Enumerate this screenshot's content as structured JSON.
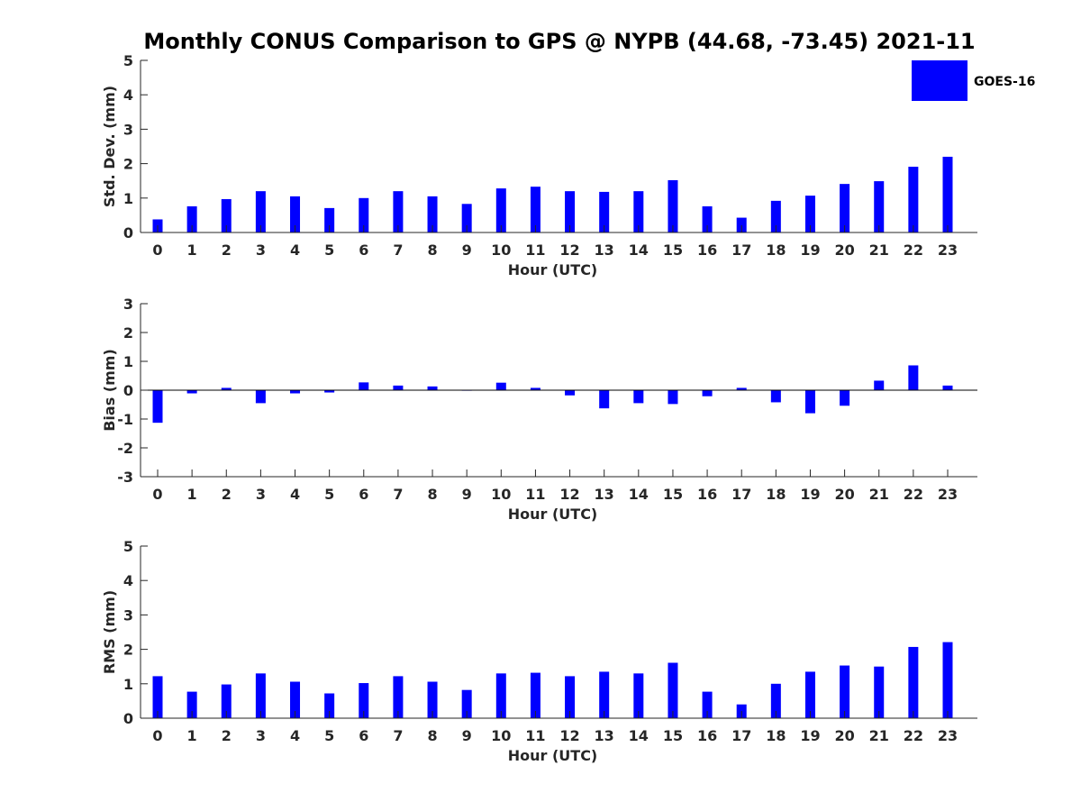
{
  "title": "Monthly CONUS Comparison to GPS @ NYPB (44.68, -73.45) 2021-11",
  "legend": {
    "label": "GOES-16",
    "color": "#0000ff",
    "placement": "top-right"
  },
  "chart_data": [
    {
      "type": "bar",
      "xlabel": "Hour (UTC)",
      "ylabel": "Std. Dev. (mm)",
      "ylim": [
        0,
        5
      ],
      "yticks": [
        0,
        1,
        2,
        3,
        4,
        5
      ],
      "categories": [
        0,
        1,
        2,
        3,
        4,
        5,
        6,
        7,
        8,
        9,
        10,
        11,
        12,
        13,
        14,
        15,
        16,
        17,
        18,
        19,
        20,
        21,
        22,
        23
      ],
      "series": [
        {
          "name": "GOES-16",
          "values": [
            0.38,
            0.76,
            0.97,
            1.2,
            1.05,
            0.71,
            1.0,
            1.2,
            1.05,
            0.83,
            1.28,
            1.33,
            1.2,
            1.18,
            1.2,
            1.52,
            0.76,
            0.43,
            0.92,
            1.07,
            1.41,
            1.49,
            1.91,
            2.2
          ]
        }
      ],
      "grid": false
    },
    {
      "type": "bar",
      "xlabel": "Hour (UTC)",
      "ylabel": "Bias (mm)",
      "ylim": [
        -3,
        3
      ],
      "yticks": [
        -3,
        -2,
        -1,
        0,
        1,
        2,
        3
      ],
      "categories": [
        0,
        1,
        2,
        3,
        4,
        5,
        6,
        7,
        8,
        9,
        10,
        11,
        12,
        13,
        14,
        15,
        16,
        17,
        18,
        19,
        20,
        21,
        22,
        23
      ],
      "series": [
        {
          "name": "GOES-16",
          "values": [
            -1.13,
            -0.11,
            0.08,
            -0.45,
            -0.11,
            -0.08,
            0.27,
            0.16,
            0.13,
            -0.01,
            0.26,
            0.08,
            -0.18,
            -0.63,
            -0.45,
            -0.48,
            -0.21,
            0.08,
            -0.42,
            -0.8,
            -0.54,
            0.33,
            0.86,
            0.16
          ]
        }
      ],
      "grid": false
    },
    {
      "type": "bar",
      "xlabel": "Hour (UTC)",
      "ylabel": "RMS (mm)",
      "ylim": [
        0,
        5
      ],
      "yticks": [
        0,
        1,
        2,
        3,
        4,
        5
      ],
      "categories": [
        0,
        1,
        2,
        3,
        4,
        5,
        6,
        7,
        8,
        9,
        10,
        11,
        12,
        13,
        14,
        15,
        16,
        17,
        18,
        19,
        20,
        21,
        22,
        23
      ],
      "series": [
        {
          "name": "GOES-16",
          "values": [
            1.22,
            0.77,
            0.98,
            1.3,
            1.06,
            0.72,
            1.02,
            1.22,
            1.06,
            0.82,
            1.3,
            1.32,
            1.22,
            1.35,
            1.3,
            1.61,
            0.77,
            0.4,
            1.0,
            1.35,
            1.53,
            1.5,
            2.07,
            2.21
          ]
        }
      ],
      "grid": false
    }
  ]
}
